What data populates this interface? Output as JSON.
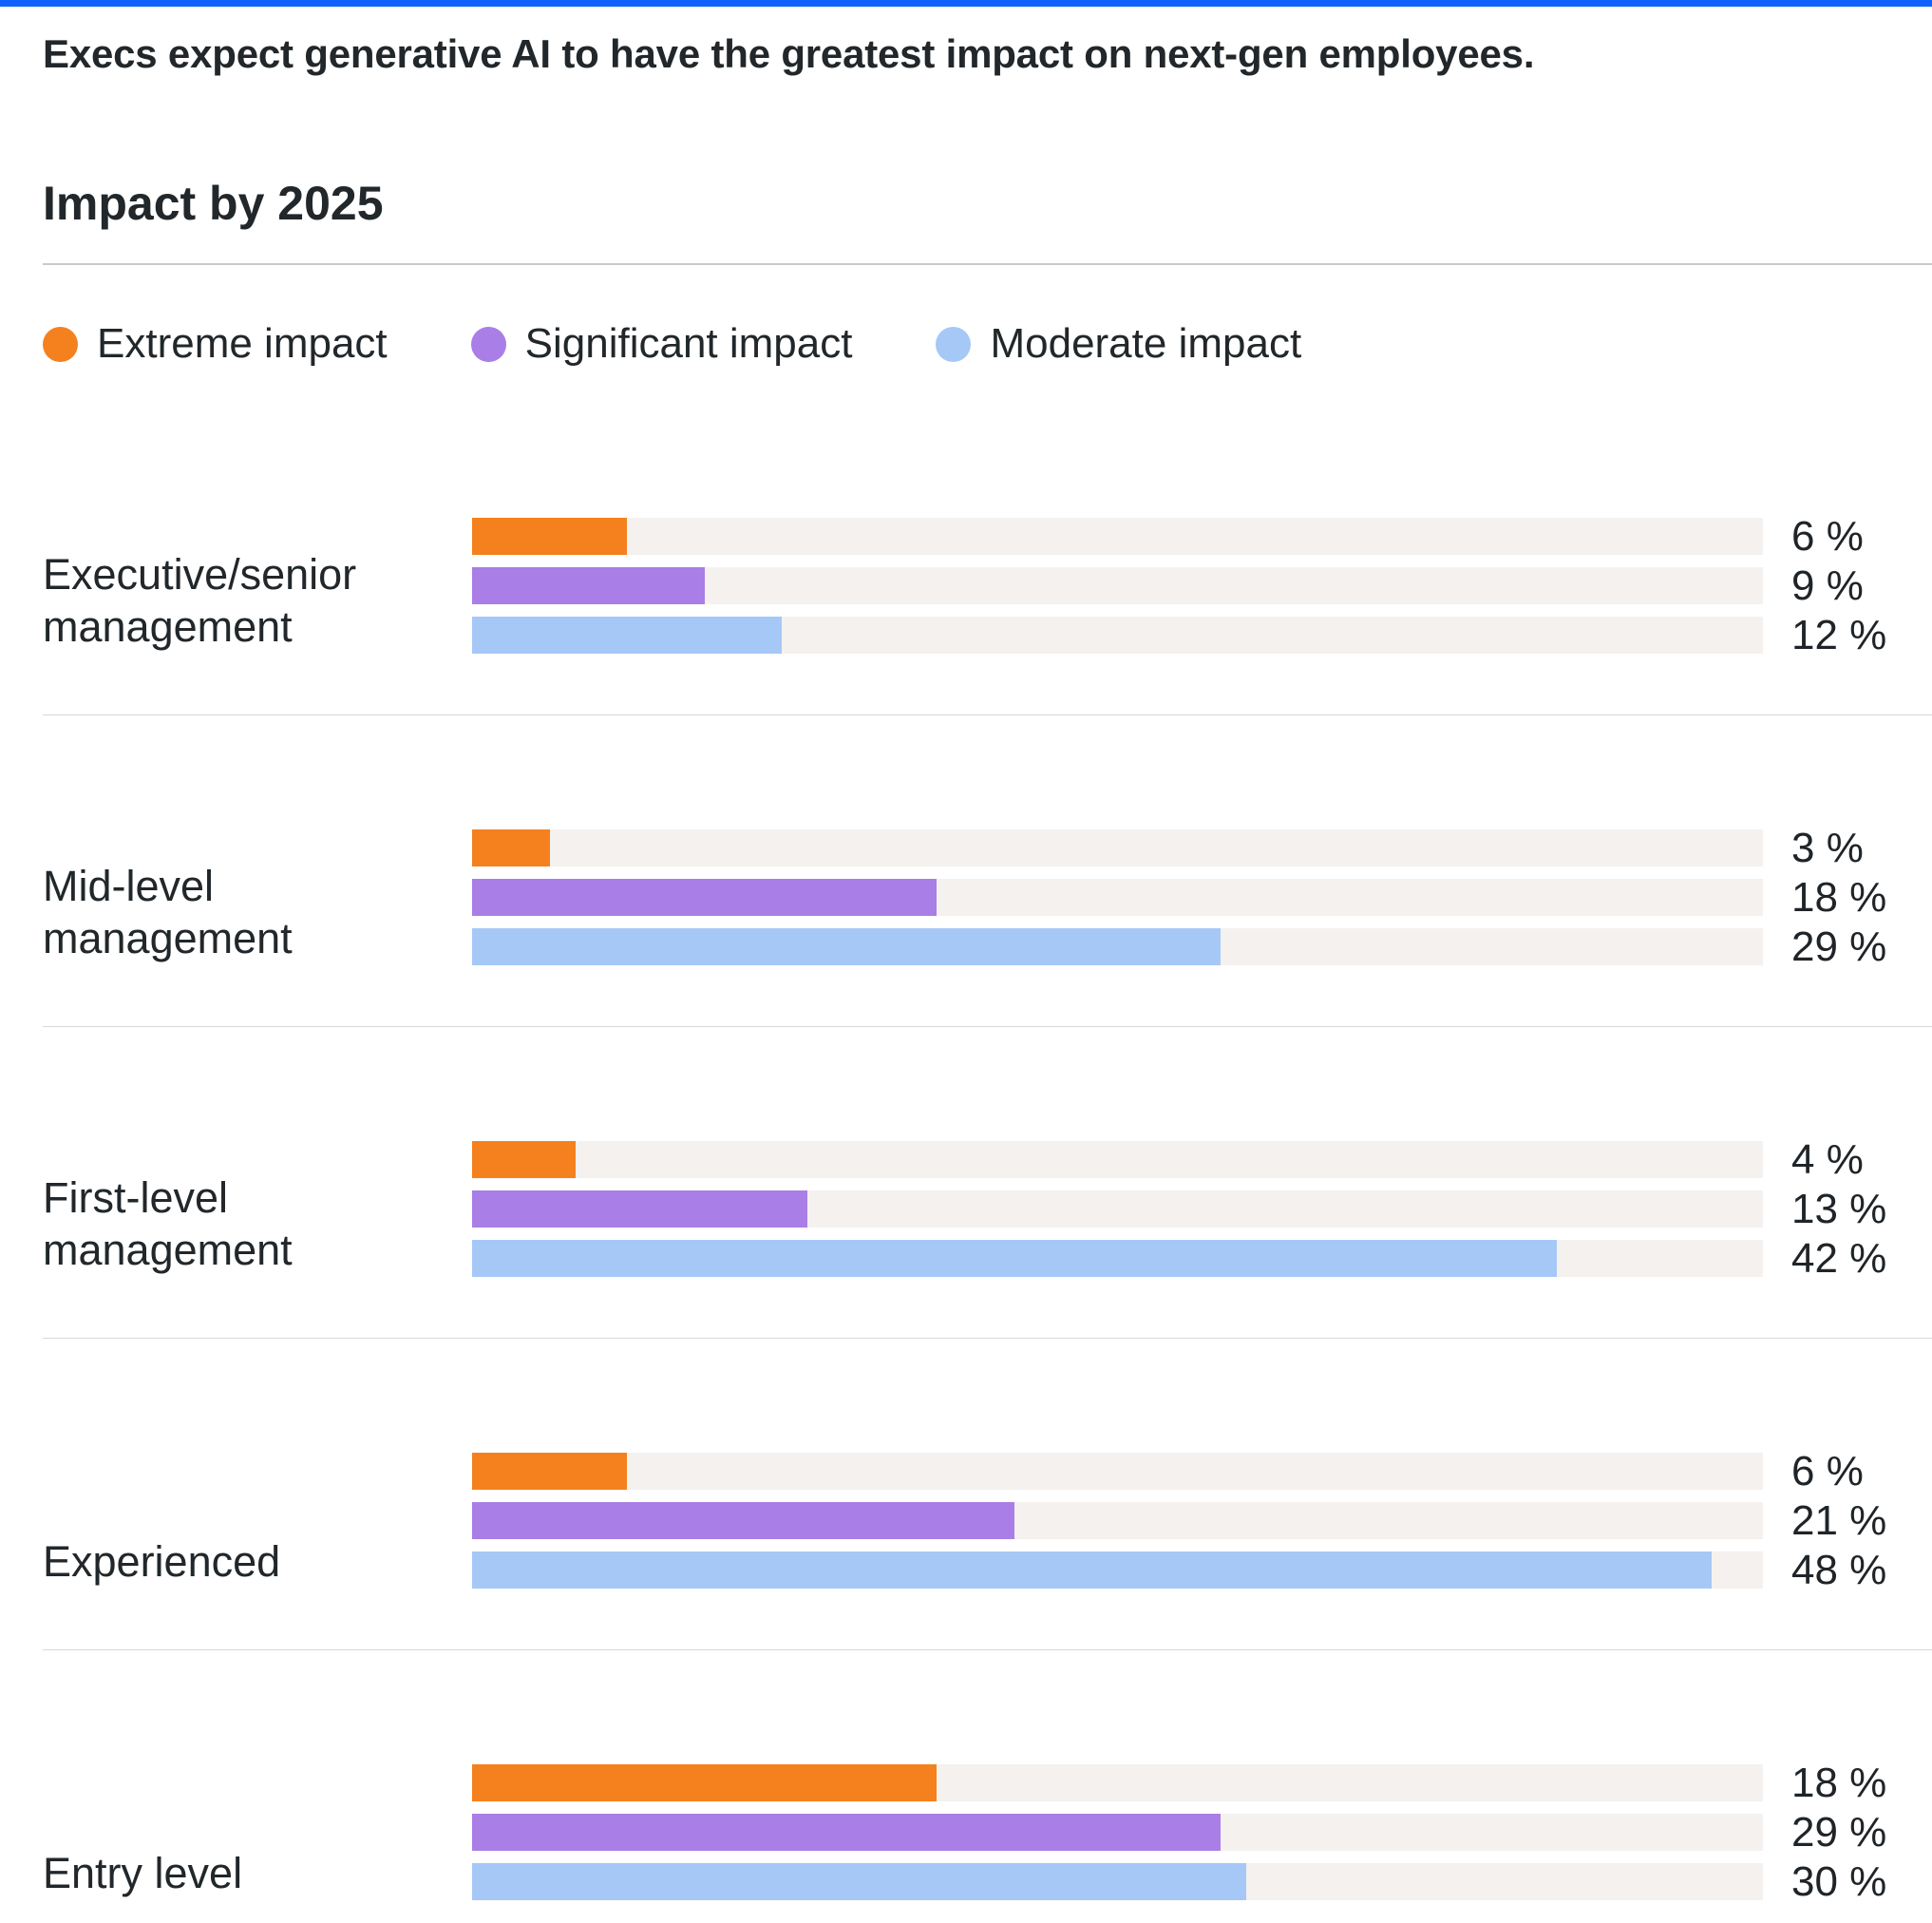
{
  "page": {
    "headline": "Execs expect generative AI to have the greatest impact on next-gen employees."
  },
  "colors": {
    "top_border": "#0f62fe",
    "track": "#f4f1ee",
    "text": "#21272a"
  },
  "chart_data": {
    "type": "bar",
    "orientation": "horizontal",
    "title": "Impact by 2025",
    "categories": [
      "Executive/senior management",
      "Mid-level management",
      "First-level management",
      "Experienced",
      "Entry level"
    ],
    "series": [
      {
        "name": "Extreme impact",
        "color": "#f4811e",
        "values": [
          6,
          3,
          4,
          6,
          18
        ]
      },
      {
        "name": "Significant impact",
        "color": "#a97ee6",
        "values": [
          9,
          18,
          13,
          21,
          29
        ]
      },
      {
        "name": "Moderate impact",
        "color": "#a5c8f6",
        "values": [
          12,
          29,
          42,
          48,
          30
        ]
      }
    ],
    "value_suffix": " %",
    "xlim": [
      0,
      50
    ],
    "grid": false,
    "legend_position": "top"
  }
}
